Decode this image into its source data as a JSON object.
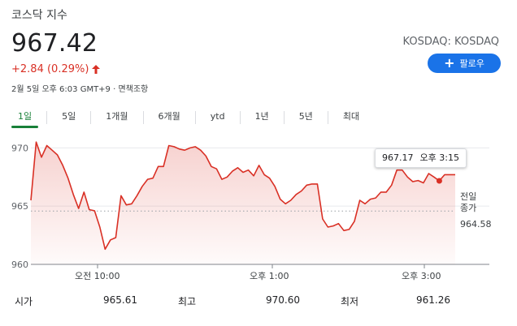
{
  "header": {
    "title": "코스닥 지수",
    "price": "967.42",
    "change": "+2.84 (0.29%)",
    "meta": "2월 5일 오후 6:03 GMT+9 · 면책조항",
    "exchange": "KOSDAQ: KOSDAQ",
    "follow_label": "팔로우",
    "change_arrow_icon": "arrow-up-icon"
  },
  "tabs": [
    "1일",
    "5일",
    "1개월",
    "6개월",
    "ytd",
    "1년",
    "5년",
    "최대"
  ],
  "active_tab": "1일",
  "colors": {
    "accent_green": "#188038",
    "line_red": "#d93025",
    "button_blue": "#1a73e8"
  },
  "tooltip": {
    "value": "967.17",
    "time": "오후 3:15"
  },
  "previous_close": {
    "label_line1": "전일",
    "label_line2": "종가",
    "value": "964.58"
  },
  "stats": [
    {
      "label": "시가",
      "value": "965.61"
    },
    {
      "label": "최고",
      "value": "970.60"
    },
    {
      "label": "최저",
      "value": "961.26"
    }
  ],
  "chart_data": {
    "type": "area",
    "y_ticks": [
      "970",
      "965",
      "960"
    ],
    "ylim": [
      960,
      971
    ],
    "x_ticks": [
      "오전 10:00",
      "오후 1:00",
      "오후 3:00"
    ],
    "reference_line": 964.58,
    "series": [
      {
        "values": [
          965.5,
          970.5,
          969.2,
          970.2,
          969.8,
          969.4,
          968.5,
          967.4,
          966.0,
          964.8,
          966.2,
          964.7,
          964.6,
          963.2,
          961.3,
          962.1,
          962.3,
          965.9,
          965.1,
          965.2,
          965.9,
          966.7,
          967.3,
          967.4,
          968.4,
          968.4,
          970.2,
          970.1,
          969.9,
          969.8,
          970.0,
          970.1,
          969.8,
          969.3,
          968.4,
          968.2,
          967.3,
          967.5,
          968.0,
          968.3,
          967.9,
          968.1,
          967.6,
          968.5,
          967.7,
          967.4,
          966.7,
          965.6,
          965.2,
          965.5,
          966.0,
          966.3,
          966.8,
          966.9,
          966.9,
          963.9,
          963.2,
          963.3,
          963.5,
          962.9,
          963.0,
          963.7,
          965.5,
          965.2,
          965.6,
          965.7,
          966.2,
          966.2,
          966.8,
          968.1,
          968.1,
          967.5,
          967.1,
          967.2,
          967.0,
          967.8,
          967.5,
          967.17,
          967.7,
          967.7,
          967.7
        ],
        "marker_value": 967.17
      }
    ]
  }
}
